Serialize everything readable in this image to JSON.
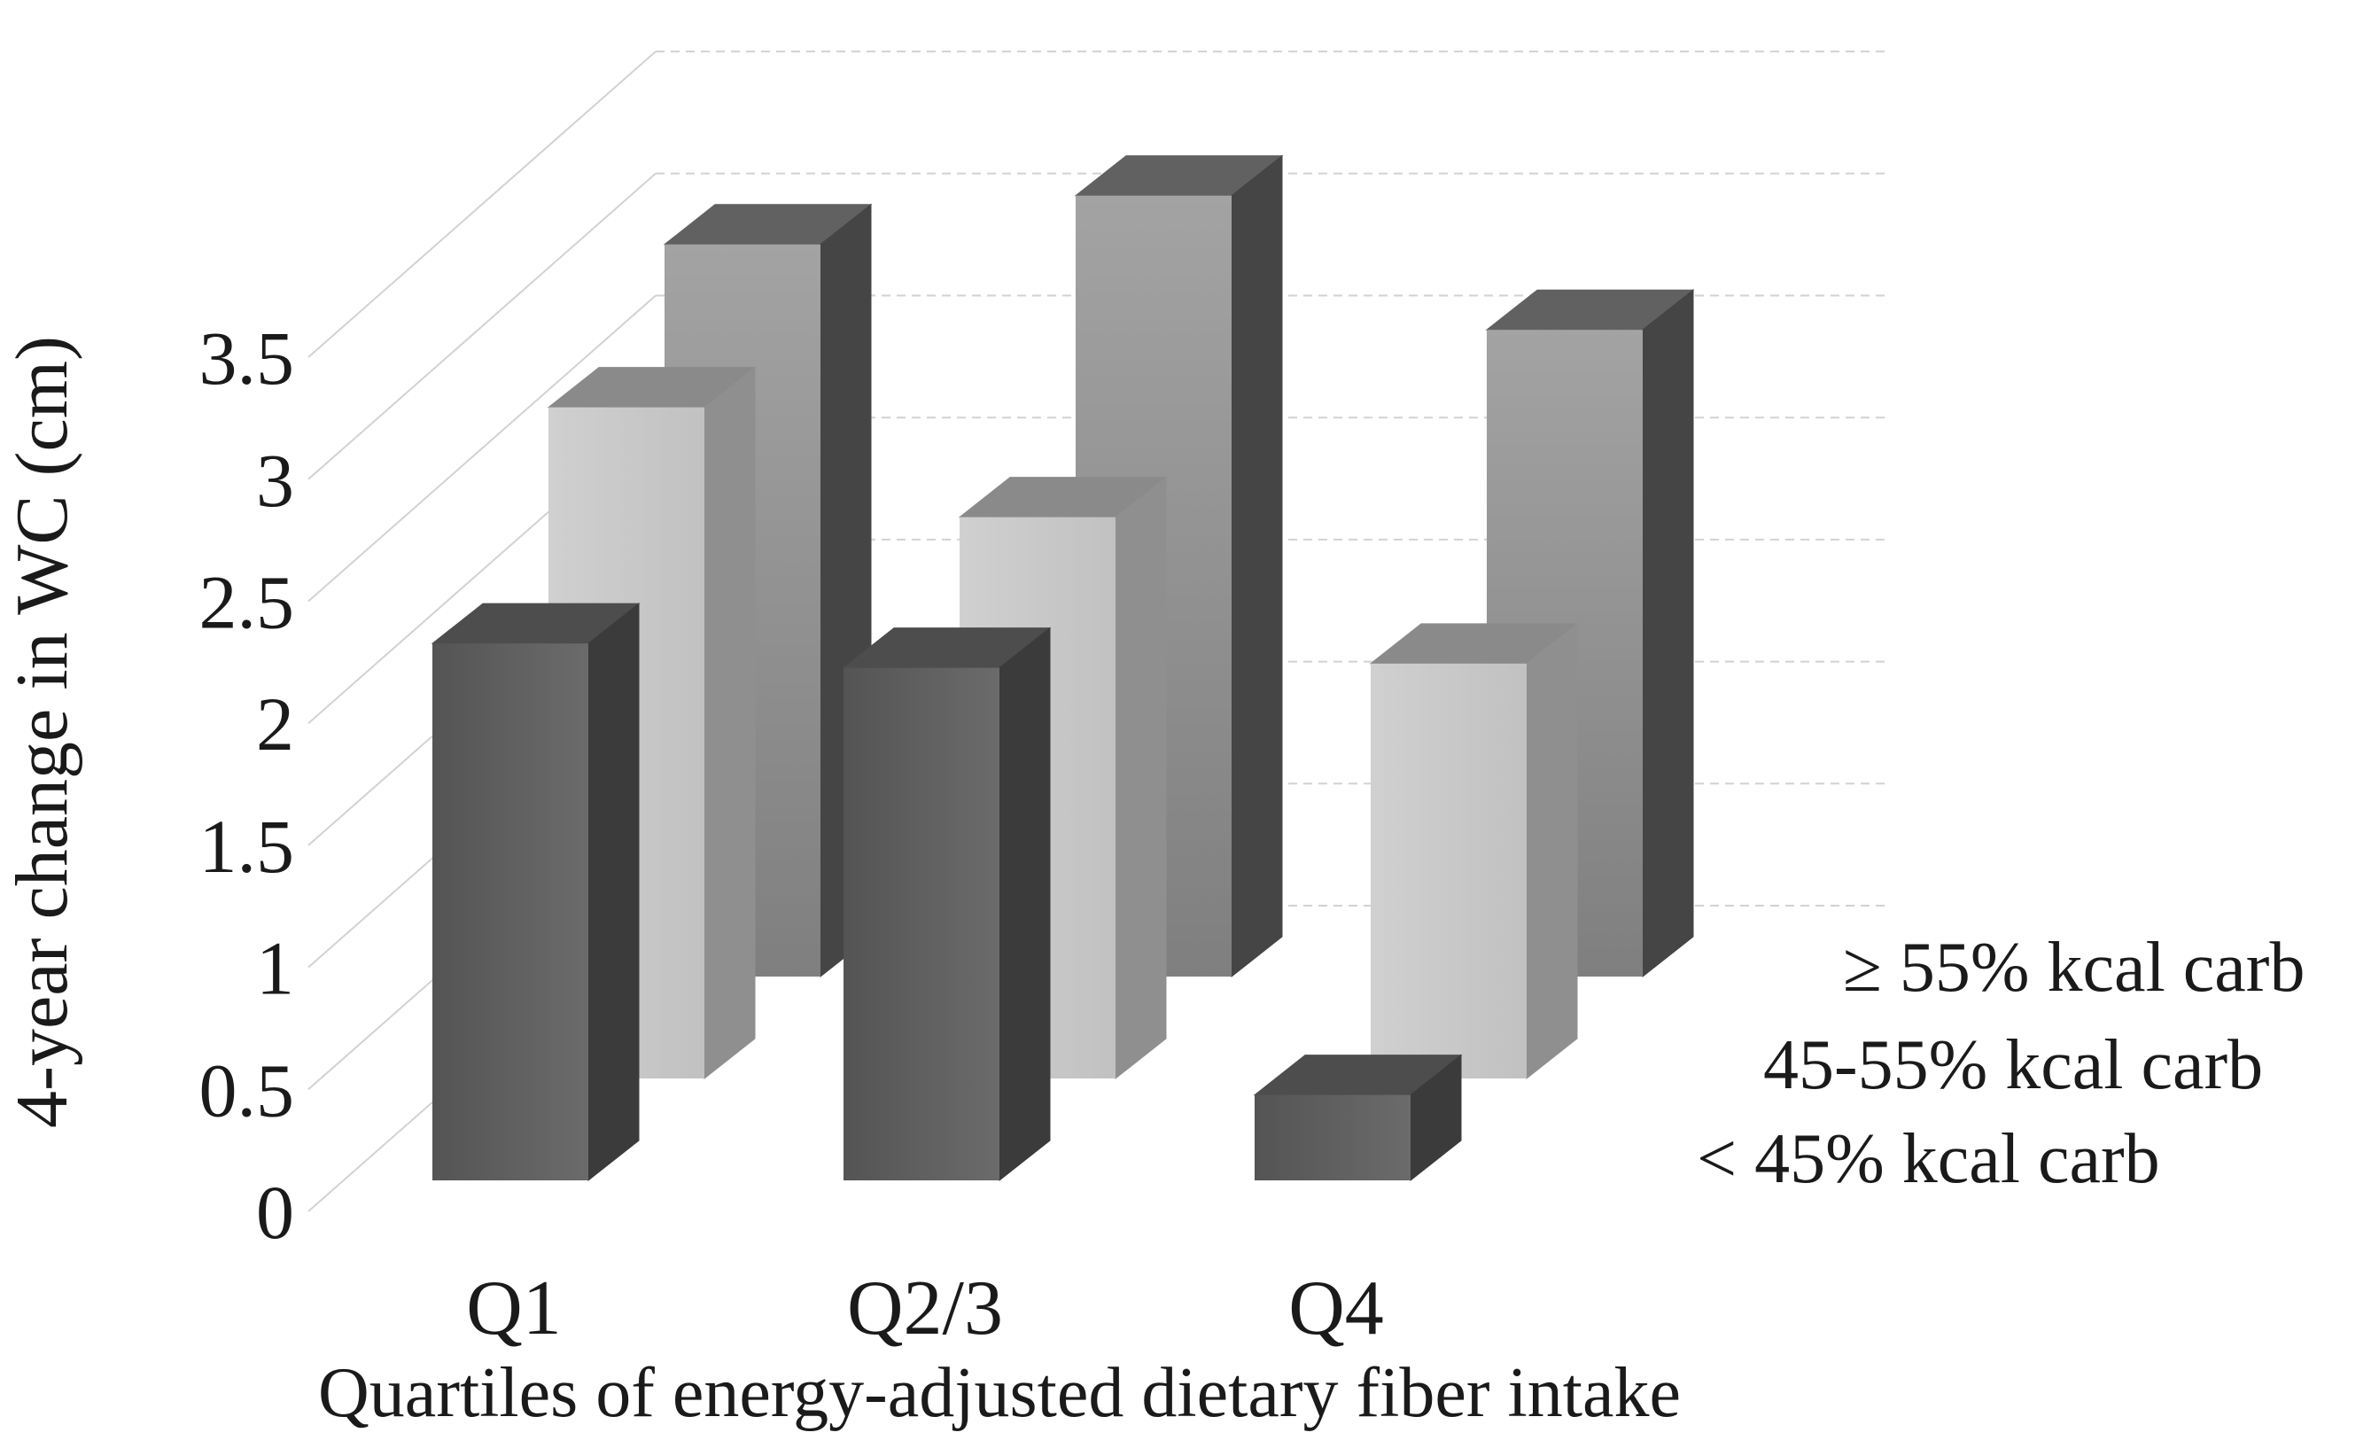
{
  "chart_data": {
    "type": "bar",
    "variant": "3d-column",
    "title": "",
    "categories": [
      "Q1",
      "Q2/3",
      "Q4"
    ],
    "series": [
      {
        "name": "< 45% kcal carb",
        "values": [
          2.2,
          2.1,
          0.35
        ],
        "colors": {
          "front_from": "#545454",
          "front_to": "#6b6b6b",
          "side": "#3b3b3b",
          "top": "#4d4d4d"
        }
      },
      {
        "name": "45-55% kcal carb",
        "values": [
          2.75,
          2.3,
          1.7
        ],
        "colors": {
          "front_from": "#d0d0d0",
          "front_to": "#c1c1c1",
          "side": "#8f8f8f",
          "top": "#8a8a8a"
        }
      },
      {
        "name": "≥ 55% kcal carb",
        "values": [
          3.0,
          3.2,
          2.65
        ],
        "colors": {
          "front_from": "#a3a3a3",
          "front_to": "#7f7f7f",
          "side": "#454545",
          "top": "#616161"
        }
      }
    ],
    "xlabel": "Quartiles of energy-adjusted dietary fiber intake",
    "ylabel": "4-year change in WC (cm)",
    "ylim": [
      0,
      3.5
    ],
    "ytick_step": 0.5,
    "ytick_values": [
      0,
      0.5,
      1,
      1.5,
      2,
      2.5,
      3,
      3.5
    ],
    "ytick_labels": [
      "0",
      "0.5",
      "1",
      "1.5",
      "2",
      "2.5",
      "3",
      "3.5"
    ],
    "grid": true,
    "legend_position": "right",
    "grid_color": "#d2d2d2",
    "background_color": "#ffffff",
    "text_color": "#1a1a1a"
  }
}
